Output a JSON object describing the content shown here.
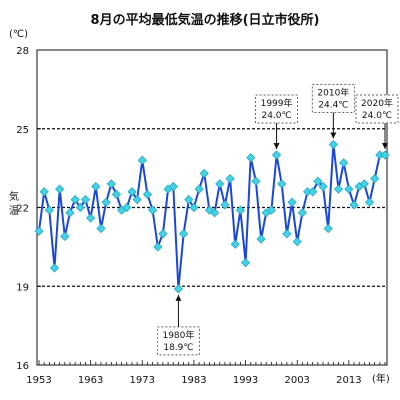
{
  "chart_data": {
    "type": "line",
    "title": "8月の平均最低気温の推移(日立市役所)",
    "y_unit": "(℃)",
    "x_unit": "(年)",
    "ylabel": "気温",
    "ylim": [
      16,
      28
    ],
    "yticks": [
      16,
      19,
      22,
      25,
      28
    ],
    "reference_lines": [
      19,
      22,
      25
    ],
    "xlim": [
      1953,
      2020
    ],
    "xticks": [
      1953,
      1963,
      1973,
      1983,
      1993,
      2003,
      2013
    ],
    "grid": false,
    "colors": {
      "line": "#1a47d6",
      "marker": "#44d2e6",
      "marker_edge": "#1fa6c2",
      "ref_line": "#111111"
    },
    "series": [
      {
        "x": [
          1953,
          1954,
          1955,
          1956,
          1957,
          1958,
          1959,
          1960,
          1961,
          1962,
          1963,
          1964,
          1965,
          1966,
          1967,
          1968,
          1969,
          1970,
          1971,
          1972,
          1973,
          1974,
          1975,
          1976,
          1977,
          1978,
          1979,
          1980,
          1981,
          1982,
          1983,
          1984,
          1985,
          1986,
          1987,
          1988,
          1989,
          1990,
          1991,
          1992,
          1993,
          1994,
          1995,
          1996,
          1997,
          1998,
          1999,
          2000,
          2001,
          2002,
          2003,
          2004,
          2005,
          2006,
          2007,
          2008,
          2009,
          2010,
          2011,
          2012,
          2013,
          2014,
          2015,
          2016,
          2017,
          2018,
          2019,
          2020
        ],
        "values": [
          21.1,
          22.6,
          21.9,
          19.7,
          22.7,
          20.9,
          21.8,
          22.3,
          22.0,
          22.3,
          21.6,
          22.8,
          21.2,
          22.2,
          22.9,
          22.5,
          21.9,
          22.0,
          22.6,
          22.3,
          23.8,
          22.5,
          21.9,
          20.5,
          21.0,
          22.7,
          22.8,
          18.9,
          21.0,
          22.3,
          22.0,
          22.7,
          23.3,
          21.9,
          21.8,
          22.9,
          22.1,
          23.1,
          20.6,
          21.9,
          19.9,
          23.9,
          23.0,
          20.8,
          21.8,
          21.9,
          24.0,
          22.9,
          21.0,
          22.2,
          20.7,
          21.8,
          22.6,
          22.6,
          23.0,
          22.8,
          21.2,
          24.4,
          22.7,
          23.7,
          22.7,
          22.1,
          22.8,
          22.9,
          22.2,
          23.1,
          24.0,
          24.0
        ]
      }
    ],
    "annotations": [
      {
        "year": 1980,
        "label_year": "1980年",
        "label_value": "18.9℃",
        "box_side": "below"
      },
      {
        "year": 1999,
        "label_year": "1999年",
        "label_value": "24.0℃",
        "box_side": "above"
      },
      {
        "year": 2010,
        "label_year": "2010年",
        "label_value": "24.4℃",
        "box_side": "above"
      },
      {
        "year": 2020,
        "label_year": "2020年",
        "label_value": "24.0℃",
        "box_side": "above"
      }
    ]
  }
}
